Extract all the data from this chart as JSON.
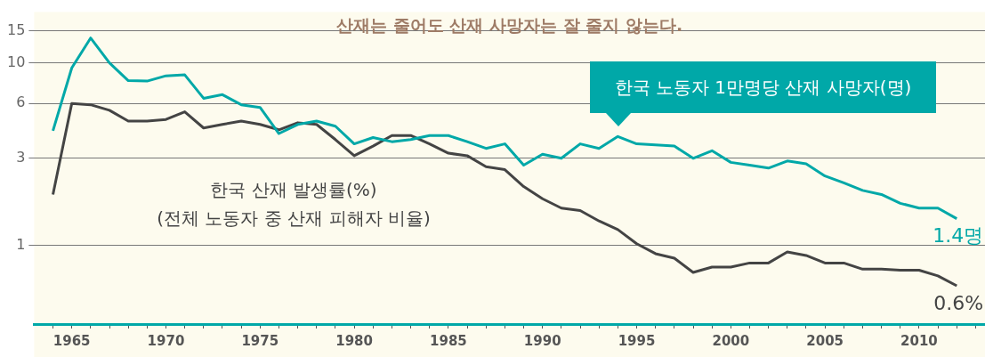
{
  "chart_data": {
    "type": "line",
    "title": "산재는 줄어도 산재 사망자는 잘 줄지 않는다.",
    "x": [
      1964,
      1965,
      1966,
      1967,
      1968,
      1969,
      1970,
      1971,
      1972,
      1973,
      1974,
      1975,
      1976,
      1977,
      1978,
      1979,
      1980,
      1981,
      1982,
      1983,
      1984,
      1985,
      1986,
      1987,
      1988,
      1989,
      1990,
      1991,
      1992,
      1993,
      1994,
      1995,
      1996,
      1997,
      1998,
      1999,
      2000,
      2001,
      2002,
      2003,
      2004,
      2005,
      2006,
      2007,
      2008,
      2009,
      2010,
      2011,
      2012
    ],
    "series": [
      {
        "name": "한국 노동자 1만명당 산재 사망자(명)",
        "color": "#00a8a8",
        "values": [
          4.25,
          9.4,
          13.7,
          10.0,
          8.0,
          7.95,
          8.5,
          8.6,
          6.4,
          6.7,
          5.9,
          5.7,
          4.1,
          4.6,
          4.8,
          4.5,
          3.6,
          3.9,
          3.7,
          3.8,
          4.0,
          4.0,
          3.7,
          3.4,
          3.6,
          2.75,
          3.16,
          3.0,
          3.6,
          3.4,
          3.95,
          3.6,
          3.55,
          3.5,
          3.0,
          3.3,
          2.85,
          2.75,
          2.65,
          2.9,
          2.8,
          2.4,
          2.2,
          2.0,
          1.9,
          1.7,
          1.6,
          1.6,
          1.4
        ],
        "value_labels": [
          null,
          null,
          null,
          null,
          null,
          null,
          null,
          null,
          null,
          null,
          null,
          null,
          null,
          null,
          null,
          null,
          null,
          null,
          null,
          null,
          null,
          null,
          null,
          null,
          null,
          null,
          null,
          null,
          null,
          null,
          null,
          null,
          null,
          null,
          null,
          null,
          null,
          null,
          null,
          null,
          null,
          null,
          null,
          null,
          null,
          null,
          null,
          null,
          "1.4명"
        ]
      },
      {
        "name": "한국 산재 발생률(%)\n(전체 노동자 중 산재 피해자 비율)",
        "color": "#444444",
        "values": [
          1.9,
          6.0,
          5.9,
          5.5,
          4.8,
          4.8,
          4.9,
          5.4,
          4.4,
          4.6,
          4.8,
          4.6,
          4.3,
          4.7,
          4.6,
          3.8,
          3.1,
          3.5,
          4.0,
          4.0,
          3.6,
          3.2,
          3.1,
          2.7,
          2.6,
          2.1,
          1.8,
          1.6,
          1.55,
          1.36,
          1.22,
          1.02,
          0.9,
          0.85,
          0.71,
          0.76,
          0.76,
          0.8,
          0.8,
          0.92,
          0.88,
          0.8,
          0.8,
          0.74,
          0.74,
          0.73,
          0.73,
          0.68,
          0.6
        ],
        "value_labels": [
          null,
          null,
          null,
          null,
          null,
          null,
          null,
          null,
          null,
          null,
          null,
          null,
          null,
          null,
          null,
          null,
          null,
          null,
          null,
          null,
          null,
          null,
          null,
          null,
          null,
          null,
          null,
          null,
          null,
          null,
          null,
          null,
          null,
          null,
          null,
          null,
          null,
          null,
          null,
          null,
          null,
          null,
          null,
          null,
          null,
          null,
          null,
          null,
          "0.6%"
        ]
      }
    ],
    "log": "y",
    "ylim": [
      0.37,
      19
    ],
    "yticks": [
      1,
      3,
      6,
      10,
      15
    ],
    "xlim": [
      1963,
      2013.5
    ],
    "xticks": [
      {
        "value": 1964,
        "label": null
      },
      1965,
      {
        "value": 1966,
        "label": null
      },
      {
        "value": 1967,
        "label": null
      },
      {
        "value": 1968,
        "label": null
      },
      {
        "value": 1969,
        "label": null
      },
      1970,
      {
        "value": 1971,
        "label": null
      },
      {
        "value": 1972,
        "label": null
      },
      {
        "value": 1973,
        "label": null
      },
      {
        "value": 1974,
        "label": null
      },
      1975,
      {
        "value": 1976,
        "label": null
      },
      {
        "value": 1977,
        "label": null
      },
      {
        "value": 1978,
        "label": null
      },
      {
        "value": 1979,
        "label": null
      },
      1980,
      {
        "value": 1981,
        "label": null
      },
      {
        "value": 1982,
        "label": null
      },
      {
        "value": 1983,
        "label": null
      },
      {
        "value": 1984,
        "label": null
      },
      1985,
      {
        "value": 1986,
        "label": null
      },
      {
        "value": 1987,
        "label": null
      },
      {
        "value": 1988,
        "label": null
      },
      {
        "value": 1989,
        "label": null
      },
      1990,
      {
        "value": 1991,
        "label": null
      },
      {
        "value": 1992,
        "label": null
      },
      {
        "value": 1993,
        "label": null
      },
      {
        "value": 1994,
        "label": null
      },
      1995,
      {
        "value": 1996,
        "label": null
      },
      {
        "value": 1997,
        "label": null
      },
      {
        "value": 1998,
        "label": null
      },
      {
        "value": 1999,
        "label": null
      },
      2000,
      {
        "value": 2001,
        "label": null
      },
      {
        "value": 2002,
        "label": null
      },
      {
        "value": 2003,
        "label": null
      },
      {
        "value": 2004,
        "label": null
      },
      2005,
      {
        "value": 2006,
        "label": null
      },
      {
        "value": 2007,
        "label": null
      },
      {
        "value": 2008,
        "label": null
      },
      {
        "value": 2009,
        "label": null
      },
      2010,
      {
        "value": 2011,
        "label": null
      },
      {
        "value": 2012,
        "label": null
      },
      {
        "value": 2013,
        "label": null
      }
    ],
    "grid": "y",
    "legend": false,
    "marker": "none",
    "line_style": "solid"
  }
}
